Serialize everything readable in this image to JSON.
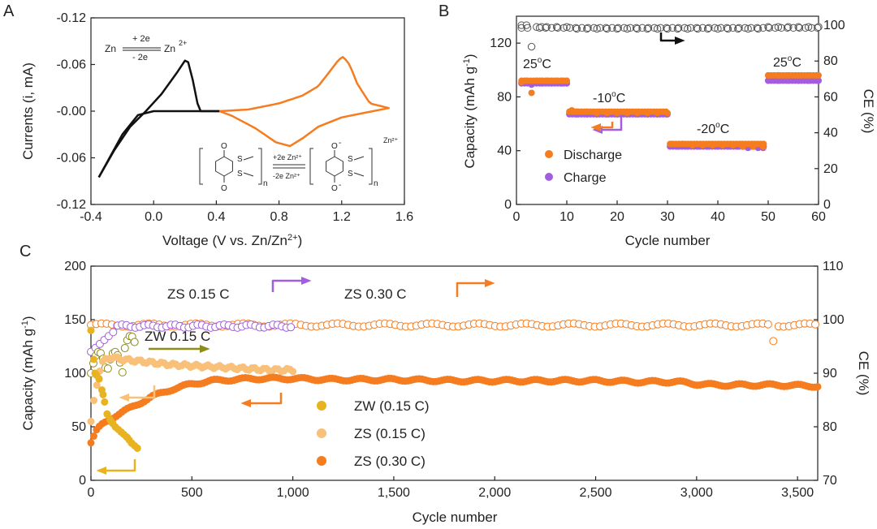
{
  "panels": {
    "a": {
      "letter": "A",
      "xlabel_main": "Voltage (V vs. Zn/Zn",
      "xlabel_sup": "2+",
      "xlabel_end": ")",
      "ylabel": "Currents (i, mA)",
      "x_ticks": [
        "-0.4",
        "0.0",
        "0.4",
        "0.8",
        "1.2",
        "1.6"
      ],
      "y_ticks": [
        "-0.12",
        "-0.06",
        "-0.00",
        "-0.06",
        "-0.12"
      ],
      "reaction": {
        "reactant": "Zn",
        "top": "+ 2e",
        "bottom": "- 2e",
        "product": "Zn",
        "product_sup": "2+"
      },
      "scheme": {
        "top": "+2e  Zn²⁺",
        "bottom": "-2e  Zn²⁺",
        "sub": "n",
        "right_ion": "Zn²⁺",
        "s": "S",
        "o": "O"
      }
    },
    "b": {
      "letter": "B",
      "xlabel": "Cycle number",
      "ylabel": "Capacity (mAh g",
      "ylabel_sup": "-1",
      "ylabel_end": ")",
      "y2label": "CE (%)",
      "x_ticks": [
        "0",
        "10",
        "20",
        "30",
        "40",
        "50",
        "60"
      ],
      "y_ticks": [
        "0",
        "40",
        "80",
        "120"
      ],
      "y2_ticks": [
        "0",
        "20",
        "40",
        "60",
        "80",
        "100"
      ],
      "temps": [
        {
          "t": "25",
          "u": "o",
          "c": "C"
        },
        {
          "t": "-10",
          "u": "o",
          "c": "C"
        },
        {
          "t": "-20",
          "u": "o",
          "c": "C"
        },
        {
          "t": "25",
          "u": "o",
          "c": "C"
        }
      ],
      "legend": [
        "Discharge",
        "Charge"
      ]
    },
    "c": {
      "letter": "C",
      "xlabel": "Cycle number",
      "ylabel": "Capacity (mAh g",
      "ylabel_sup": "-1",
      "ylabel_end": ")",
      "y2label": "CE (%)",
      "x_ticks": [
        "0",
        "500",
        "1,000",
        "1,500",
        "2,000",
        "2,500",
        "3,000",
        "3,500"
      ],
      "y_ticks": [
        "0",
        "50",
        "100",
        "150",
        "200"
      ],
      "y2_ticks": [
        "70",
        "80",
        "90",
        "100",
        "110"
      ],
      "series_labels": [
        "ZS 0.15 C",
        "ZS 0.30 C",
        "ZW 0.15 C"
      ],
      "legend": [
        "ZW (0.15 C)",
        "ZS  (0.15 C)",
        "ZS  (0.30 C)"
      ]
    }
  },
  "colors": {
    "orange": "#f57c1f",
    "light_orange": "#f9c07a",
    "gold": "#e8b321",
    "purple": "#a35de0",
    "olive": "#8c8c1a",
    "black": "#111111"
  },
  "chart_data": [
    {
      "type": "line",
      "panel": "A",
      "x_range": [
        -0.4,
        1.6
      ],
      "y_ticks_printed": [
        "-0.12",
        "-0.06",
        "-0.00",
        "-0.06",
        "-0.12"
      ],
      "series": [
        {
          "color": "black",
          "x": [
            -0.35,
            -0.25,
            -0.15,
            -0.05,
            0.05,
            0.15,
            0.2,
            0.22,
            0.25,
            0.28,
            0.3,
            0.42
          ],
          "y": [
            -0.085,
            -0.05,
            -0.02,
            0.0,
            0.022,
            0.05,
            0.065,
            0.063,
            0.04,
            0.01,
            0.0,
            0.0
          ]
        },
        {
          "color": "orange",
          "x": [
            0.42,
            0.6,
            0.8,
            1.0,
            1.1,
            1.2,
            1.3,
            1.45,
            1.5,
            1.3,
            1.0,
            0.87,
            0.7,
            0.5
          ],
          "y": [
            0.0,
            0.002,
            0.01,
            0.025,
            0.045,
            0.07,
            0.04,
            0.005,
            0.005,
            -0.005,
            -0.03,
            -0.045,
            -0.03,
            -0.005
          ]
        }
      ]
    },
    {
      "type": "scatter",
      "panel": "B",
      "xlim": [
        0,
        60
      ],
      "ylim": [
        0,
        140
      ],
      "y2lim": [
        0,
        100
      ],
      "discharge": {
        "x": [
          1,
          2,
          3,
          4,
          5,
          6,
          7,
          8,
          9,
          10,
          11,
          12,
          14,
          16,
          18,
          20,
          22,
          24,
          26,
          28,
          30,
          31,
          33,
          35,
          37,
          39,
          41,
          43,
          45,
          47,
          49,
          50,
          52,
          54,
          56,
          58,
          60
        ],
        "y": [
          91,
          92,
          83,
          92,
          92,
          92,
          92,
          92,
          92,
          92,
          70,
          69,
          69,
          68,
          68,
          68,
          68,
          68,
          68,
          68,
          68,
          45,
          45,
          44,
          44,
          44,
          44,
          44,
          43,
          43,
          43,
          96,
          96,
          96,
          96,
          96,
          96
        ]
      },
      "charge": {
        "x": [
          1,
          3,
          5,
          7,
          9,
          10,
          12,
          14,
          16,
          18,
          20,
          22,
          24,
          26,
          28,
          30,
          32,
          34,
          36,
          38,
          40,
          42,
          44,
          46,
          48,
          49,
          50,
          52,
          54,
          56,
          58,
          60
        ],
        "y": [
          91,
          90,
          91,
          91,
          91,
          91,
          68,
          68,
          68,
          68,
          68,
          68,
          68,
          68,
          68,
          68,
          44,
          44,
          44,
          44,
          44,
          44,
          44,
          43,
          43,
          43,
          93,
          93,
          93,
          93,
          93,
          93
        ]
      },
      "ce": {
        "x": [
          1,
          2,
          3,
          4,
          5,
          6,
          8,
          10,
          12,
          14,
          16,
          18,
          20,
          22,
          24,
          26,
          28,
          30,
          32,
          34,
          36,
          38,
          40,
          42,
          44,
          46,
          48,
          50,
          52,
          54,
          56,
          58,
          60
        ],
        "y": [
          100,
          100,
          88,
          99,
          99,
          99,
          99,
          99,
          98,
          98,
          98,
          98,
          98,
          98,
          98,
          98,
          98,
          98,
          98,
          98,
          98,
          98,
          98,
          98,
          98,
          98,
          98,
          99,
          99,
          99,
          99,
          99,
          99
        ]
      }
    },
    {
      "type": "scatter",
      "panel": "C",
      "xlim": [
        0,
        3600
      ],
      "ylim": [
        0,
        200
      ],
      "y2lim": [
        70,
        110
      ],
      "series": [
        {
          "name": "ZW (0.15 C)",
          "color": "gold",
          "x": [
            0,
            20,
            40,
            60,
            80,
            100,
            120,
            150,
            180,
            200,
            230
          ],
          "y": [
            140,
            100,
            95,
            80,
            62,
            55,
            50,
            45,
            40,
            35,
            30
          ]
        },
        {
          "name": "ZS  (0.15 C)",
          "color": "light_orange",
          "x": [
            0,
            20,
            50,
            100,
            150,
            200,
            300,
            400,
            500,
            600,
            700,
            800,
            900,
            1000
          ],
          "y": [
            55,
            80,
            110,
            115,
            113,
            112,
            110,
            108,
            107,
            106,
            105,
            104,
            103,
            103
          ]
        },
        {
          "name": "ZS  (0.30 C)",
          "color": "orange",
          "x": [
            0,
            30,
            60,
            100,
            150,
            200,
            300,
            400,
            500,
            600,
            700,
            800,
            900,
            1000,
            1200,
            1500,
            1800,
            2000,
            2200,
            2500,
            2700,
            2900,
            3000,
            3100,
            3200,
            3400,
            3600
          ],
          "y": [
            35,
            47,
            53,
            58,
            63,
            68,
            78,
            85,
            90,
            93,
            94,
            95,
            95,
            95,
            94,
            94,
            93,
            93,
            93,
            93,
            92,
            92,
            90,
            89,
            89,
            89,
            88
          ]
        }
      ],
      "ce": [
        {
          "color": "gold",
          "x": [
            0,
            30,
            60,
            100,
            150,
            200
          ],
          "y": [
            95,
            92,
            90,
            91,
            92,
            96
          ]
        },
        {
          "color": "purple",
          "x": [
            0,
            50,
            100,
            200,
            300,
            400,
            500,
            600,
            700,
            800,
            900,
            1000
          ],
          "y": [
            95,
            96,
            97,
            98,
            99,
            99,
            99,
            99,
            99,
            99,
            99,
            99
          ]
        },
        {
          "color": "orange",
          "x": [
            0,
            100,
            200,
            300,
            500,
            800,
            1000,
            1500,
            2000,
            2500,
            3000,
            3400,
            3600
          ],
          "y": [
            99,
            99,
            99,
            99,
            99,
            99,
            99,
            99,
            99,
            99,
            99,
            96,
            99
          ]
        }
      ]
    }
  ]
}
